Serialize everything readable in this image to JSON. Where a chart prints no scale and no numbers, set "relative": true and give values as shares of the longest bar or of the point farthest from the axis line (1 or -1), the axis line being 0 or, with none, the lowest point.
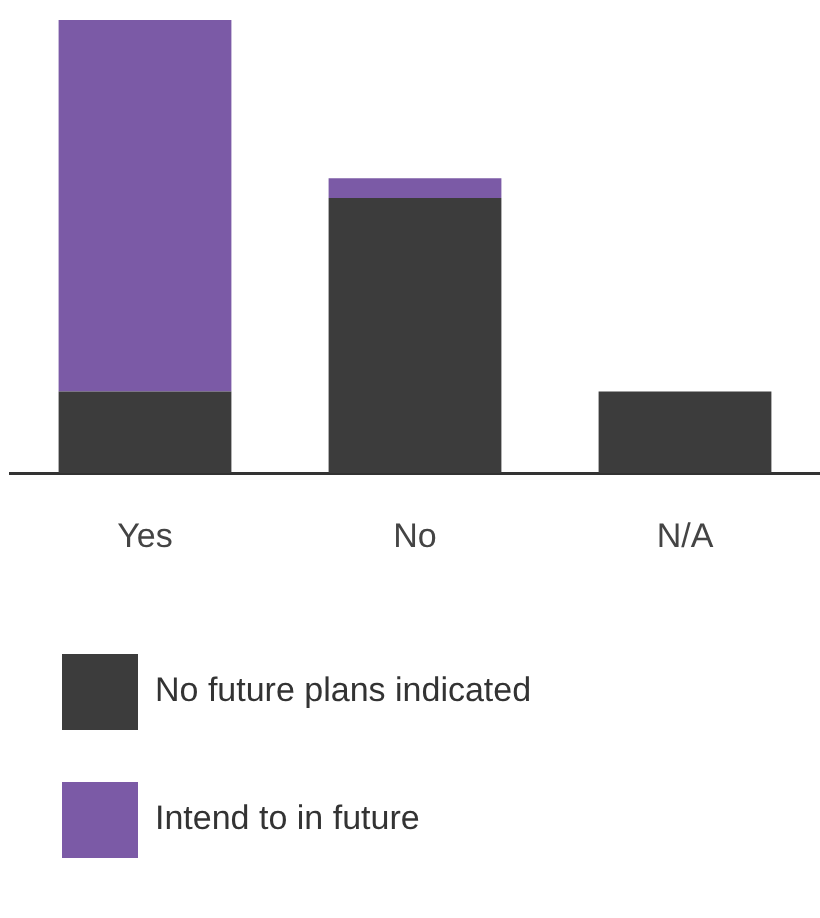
{
  "chart_data": {
    "type": "bar",
    "stacked": true,
    "relative": true,
    "categories": [
      "Yes",
      "No",
      "N/A"
    ],
    "series": [
      {
        "name": "No future plans indicated",
        "color": "#3c3c3c",
        "values": [
          0.18,
          0.607,
          0.18
        ]
      },
      {
        "name": "Intend to in future",
        "color": "#7b5aa6",
        "values": [
          0.82,
          0.044,
          null
        ]
      }
    ],
    "legend": "bottom left",
    "grid": false
  }
}
